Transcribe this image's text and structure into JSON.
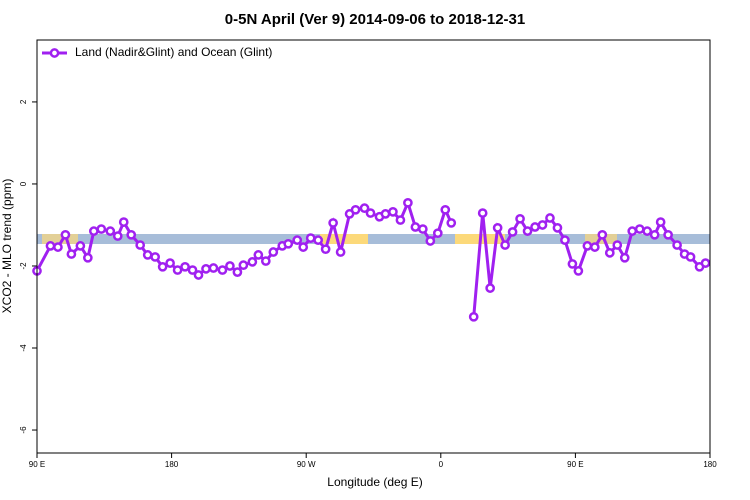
{
  "chart_data": {
    "type": "line",
    "title": "0-5N April (Ver 9)   2014-09-06 to 2018-12-31",
    "x_label": "Longitude (deg E)",
    "y_label": "XCO2 - MLO trend (ppm)",
    "x": [
      90,
      99,
      104,
      109,
      113,
      119,
      124,
      128,
      133,
      139,
      144,
      148,
      153,
      159,
      164,
      169,
      174,
      179,
      184,
      189,
      194,
      198,
      203,
      208,
      214,
      219,
      224,
      228,
      234,
      238,
      243,
      248,
      254,
      258,
      264,
      268,
      273,
      278,
      283,
      288,
      293,
      299,
      303,
      309,
      313,
      319,
      323,
      328,
      333,
      338,
      343,
      348,
      353,
      358,
      363,
      367,
      375,
      382,
      388,
      393,
      398,
      403,
      408,
      413,
      418,
      423,
      428,
      433,
      438,
      443,
      448,
      452,
      458,
      463,
      468,
      473,
      478,
      483,
      488,
      493,
      498,
      503,
      507,
      512,
      518,
      523,
      527,
      533,
      537
    ],
    "series": [
      {
        "name": "Land (Nadir&Glint) and Ocean (Glint)",
        "color": "#a020f0",
        "values": [
          -2.12,
          -1.51,
          -1.54,
          -1.24,
          -1.71,
          -1.51,
          -1.8,
          -1.15,
          -1.1,
          -1.15,
          -1.27,
          -0.93,
          -1.24,
          -1.49,
          -1.73,
          -1.78,
          -2.02,
          -1.93,
          -2.1,
          -2.02,
          -2.1,
          -2.22,
          -2.07,
          -2.05,
          -2.1,
          -2.0,
          -2.15,
          -1.98,
          -1.9,
          -1.73,
          -1.88,
          -1.66,
          -1.51,
          -1.46,
          -1.37,
          -1.54,
          -1.32,
          -1.37,
          -1.59,
          -0.95,
          -1.66,
          -0.73,
          -0.63,
          -0.59,
          -0.71,
          -0.8,
          -0.73,
          -0.68,
          -0.88,
          -0.46,
          -1.05,
          -1.1,
          -1.39,
          -1.2,
          -0.63,
          -0.95,
          null,
          -3.24,
          -0.71,
          -2.54,
          -1.07,
          -1.49,
          -1.17,
          -0.85,
          -1.15,
          -1.05,
          -1.0,
          -0.83,
          -1.07,
          -1.37,
          -1.95,
          -2.12,
          -1.51,
          -1.54,
          -1.24,
          -1.68,
          -1.49,
          -1.8,
          -1.15,
          -1.1,
          -1.15,
          -1.24,
          -0.93,
          -1.24,
          -1.49,
          -1.71,
          -1.78,
          -2.02,
          -1.93
        ]
      }
    ],
    "xlim": [
      90,
      540
    ],
    "xticks": [
      {
        "value": 90,
        "label": "90 E"
      },
      180,
      {
        "value": 270,
        "label": "90 W"
      },
      {
        "value": 360,
        "label": "0"
      },
      {
        "value": 450,
        "label": "90 E"
      },
      {
        "value": 540,
        "label": "180"
      }
    ],
    "ylim": [
      -6.56,
      3.51
    ],
    "yticks": [
      -6,
      -4,
      -2,
      0,
      2
    ],
    "legend": "top-left"
  }
}
